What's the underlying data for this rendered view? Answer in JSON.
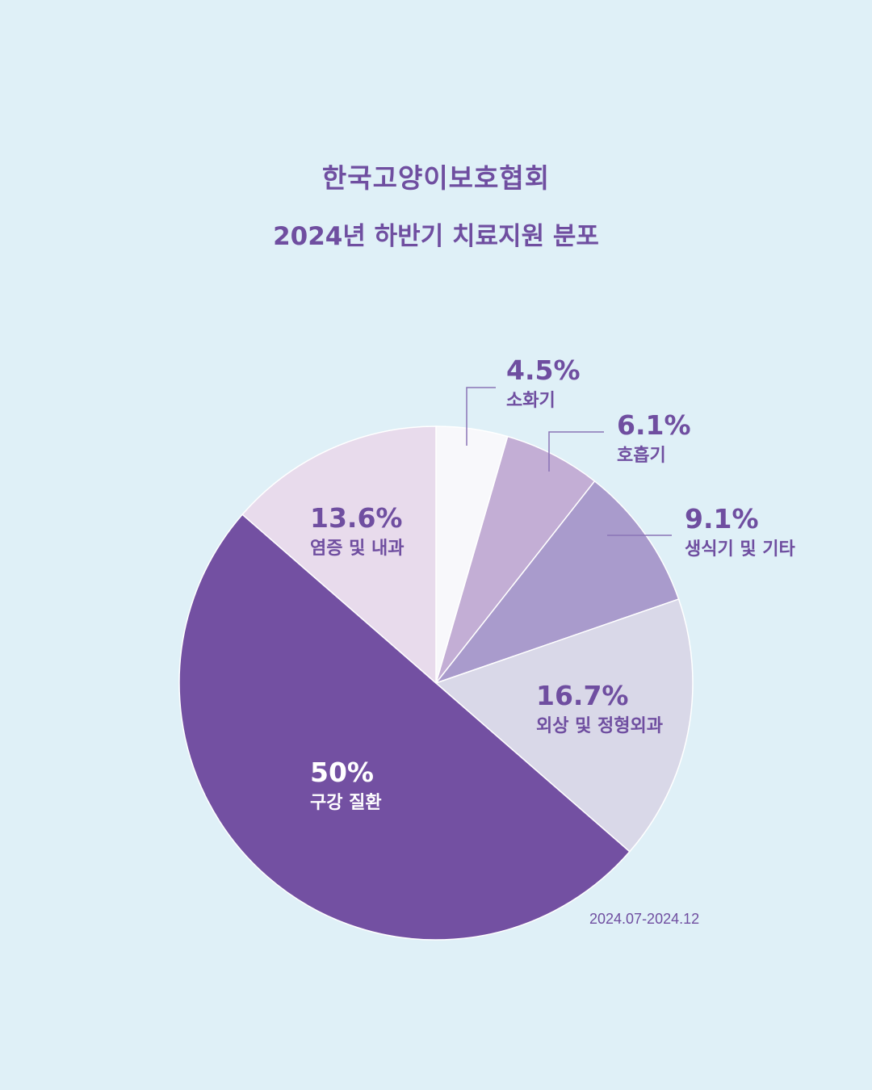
{
  "title": {
    "line1": "한국고양이보호협회",
    "line2": "2024년 하반기 치료지원 분포"
  },
  "date_range": "2024.07-2024.12",
  "colors": {
    "background": "#dff0f7",
    "text": "#6f4ea0"
  },
  "chart_data": {
    "type": "pie",
    "title": "2024년 하반기 치료지원 분포",
    "slices": [
      {
        "label": "소화기",
        "percent_label": "4.5%",
        "value": 4.5,
        "color": "#f8f8fb"
      },
      {
        "label": "호흡기",
        "percent_label": "6.1%",
        "value": 6.1,
        "color": "#c3aed5"
      },
      {
        "label": "생식기 및 기타",
        "percent_label": "9.1%",
        "value": 9.1,
        "color": "#a99bcc"
      },
      {
        "label": "외상 및 정형외과",
        "percent_label": "16.7%",
        "value": 16.7,
        "color": "#d9d8e8"
      },
      {
        "label": "구강 질환",
        "percent_label": "50%",
        "value": 50,
        "color": "#7350a2"
      },
      {
        "label": "염증 및 내과",
        "percent_label": "13.6%",
        "value": 13.6,
        "color": "#e8dbec"
      }
    ]
  }
}
